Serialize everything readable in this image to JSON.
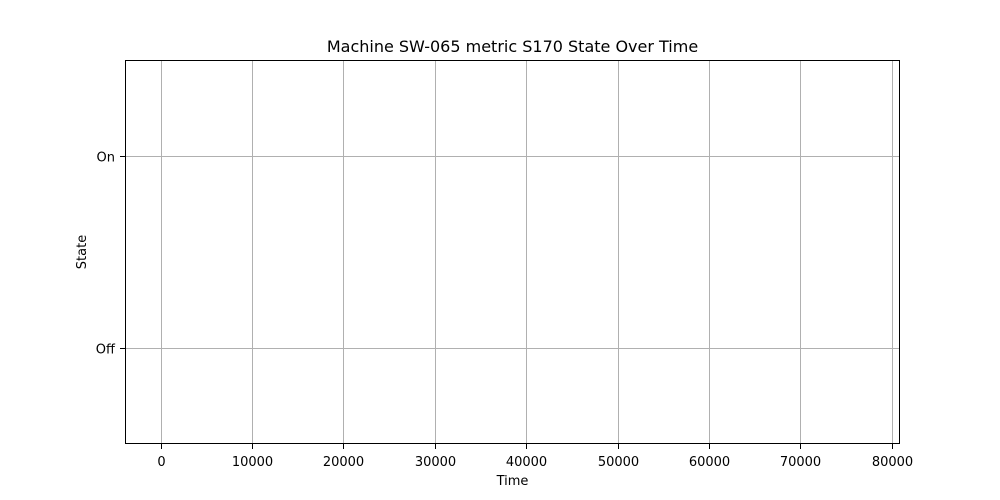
{
  "chart_data": {
    "type": "line",
    "title": "Machine SW-065 metric S170 State Over Time",
    "xlabel": "Time",
    "ylabel": "State",
    "xlim": [
      -3900,
      80900
    ],
    "ylim": [
      -0.5,
      1.5
    ],
    "x_ticks": [
      0,
      10000,
      20000,
      30000,
      40000,
      50000,
      60000,
      70000,
      80000
    ],
    "x_tick_labels": [
      "0",
      "10000",
      "20000",
      "30000",
      "40000",
      "50000",
      "60000",
      "70000",
      "80000"
    ],
    "y_ticks": [
      0,
      1
    ],
    "y_tick_labels": [
      "Off",
      "On"
    ],
    "grid": true,
    "series": [
      {
        "x": [],
        "y": []
      }
    ]
  }
}
